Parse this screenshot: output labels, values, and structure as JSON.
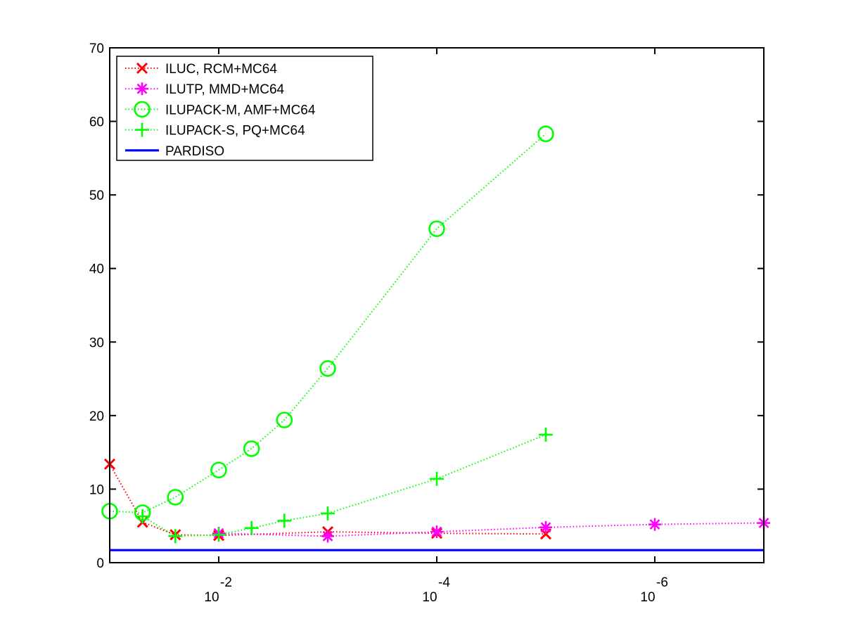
{
  "chart_data": {
    "type": "line",
    "title": "",
    "xlabel": "",
    "ylabel": "",
    "xscale": "log",
    "x_direction": "decreasing",
    "xlim": [
      0.1,
      1e-07
    ],
    "ylim": [
      0,
      70
    ],
    "grid": false,
    "legend_position": "top-left",
    "yticks": [
      0,
      10,
      20,
      30,
      40,
      50,
      60,
      70
    ],
    "xticks": [
      {
        "value": 0.01,
        "base": "10",
        "exponent": "-2"
      },
      {
        "value": 0.0001,
        "base": "10",
        "exponent": "-4"
      },
      {
        "value": 1e-06,
        "base": "10",
        "exponent": "-6"
      }
    ],
    "series": [
      {
        "name": "ILUC, RCM+MC64",
        "color": "#ff0000",
        "marker": "x",
        "linestyle": "dotted",
        "x": [
          0.1,
          0.05,
          0.025,
          0.01,
          0.001,
          0.0001,
          1e-05
        ],
        "y": [
          13.4,
          5.5,
          3.8,
          3.7,
          4.2,
          4.0,
          3.9
        ]
      },
      {
        "name": "ILUTP, MMD+MC64",
        "color": "#ff00ff",
        "marker": "asterisk",
        "linestyle": "dotted",
        "x": [
          0.01,
          0.001,
          0.0001,
          1e-05,
          1e-06,
          1e-07
        ],
        "y": [
          4.0,
          3.6,
          4.2,
          4.8,
          5.2,
          5.4
        ]
      },
      {
        "name": "ILUPACK-M, AMF+MC64",
        "color": "#00ff00",
        "marker": "circle",
        "linestyle": "dotted",
        "x": [
          0.1,
          0.05,
          0.025,
          0.01,
          0.005,
          0.0025,
          0.001,
          0.0001,
          1e-05
        ],
        "y": [
          7.0,
          6.8,
          8.9,
          12.6,
          15.5,
          19.4,
          26.4,
          45.4,
          58.3
        ]
      },
      {
        "name": "ILUPACK-S, PQ+MC64",
        "color": "#00ff00",
        "marker": "plus",
        "linestyle": "dotted",
        "x": [
          0.05,
          0.025,
          0.01,
          0.005,
          0.0025,
          0.001,
          0.0001,
          1e-05
        ],
        "y": [
          6.3,
          3.6,
          3.8,
          4.7,
          5.7,
          6.7,
          11.4,
          17.4
        ]
      },
      {
        "name": "PARDISO",
        "color": "#0000ff",
        "marker": "none",
        "linestyle": "solid",
        "x": [
          0.1,
          1e-07
        ],
        "y": [
          1.7,
          1.7
        ]
      }
    ]
  }
}
